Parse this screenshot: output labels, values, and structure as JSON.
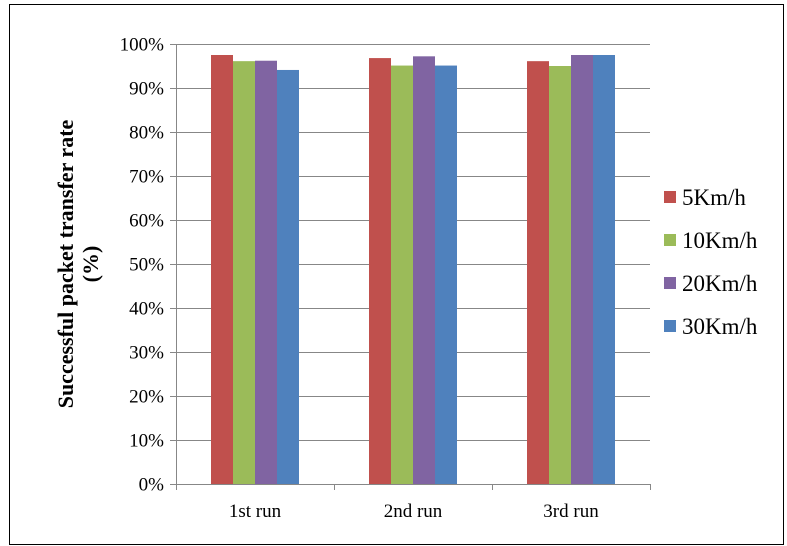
{
  "chart_data": {
    "type": "bar",
    "title": "",
    "xlabel": "",
    "ylabel": "Successful packet transfer rate (%)",
    "ylabel_lines": [
      "Successful packet transfer rate",
      "(%)"
    ],
    "categories": [
      "1st run",
      "2nd run",
      "3rd run"
    ],
    "series": [
      {
        "name": "5Km/h",
        "color": "#C0504D",
        "values": [
          0.975,
          0.968,
          0.961
        ]
      },
      {
        "name": "10Km/h",
        "color": "#9BBB59",
        "values": [
          0.961,
          0.951,
          0.95
        ]
      },
      {
        "name": "20Km/h",
        "color": "#8064A2",
        "values": [
          0.962,
          0.972,
          0.975
        ]
      },
      {
        "name": "30Km/h",
        "color": "#4F81BD",
        "values": [
          0.941,
          0.951,
          0.975
        ]
      }
    ],
    "ylim": [
      0,
      1
    ],
    "yticks": [
      0,
      0.1,
      0.2,
      0.3,
      0.4,
      0.5,
      0.6,
      0.7,
      0.8,
      0.9,
      1.0
    ],
    "ytick_labels": [
      "0%",
      "10%",
      "20%",
      "30%",
      "40%",
      "50%",
      "60%",
      "70%",
      "80%",
      "90%",
      "100%"
    ],
    "grid": true,
    "legend_position": "right"
  }
}
